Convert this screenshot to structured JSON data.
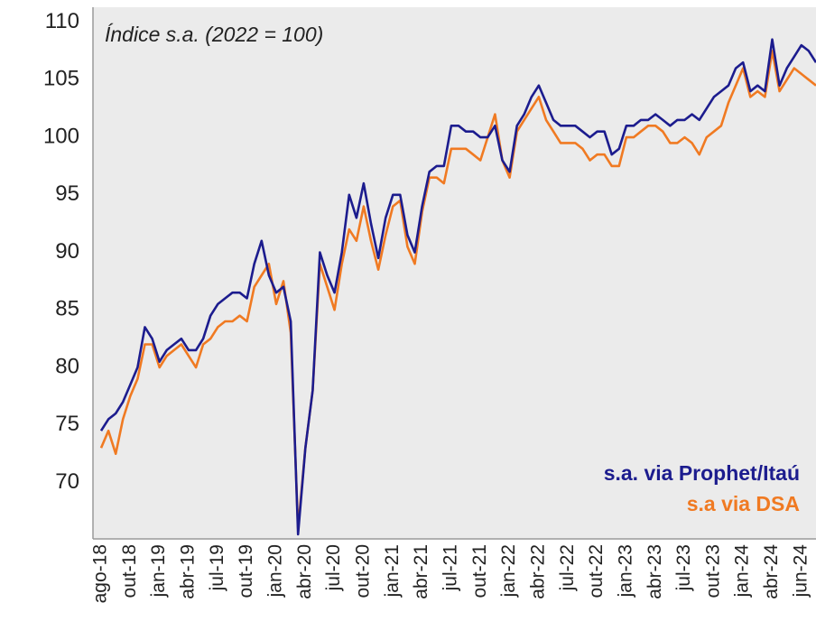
{
  "chart_data": {
    "type": "line",
    "annotation": "Índice s.a. (2022 = 100)",
    "categories": [
      "ago-18",
      null,
      null,
      null,
      "out-18",
      null,
      null,
      null,
      "jan-19",
      null,
      null,
      null,
      "abr-19",
      null,
      null,
      null,
      "jul-19",
      null,
      null,
      null,
      "out-19",
      null,
      null,
      null,
      "jan-20",
      null,
      null,
      null,
      "abr-20",
      null,
      null,
      null,
      "jul-20",
      null,
      null,
      null,
      "out-20",
      null,
      null,
      null,
      "jan-21",
      null,
      null,
      null,
      "abr-21",
      null,
      null,
      null,
      "jul-21",
      null,
      null,
      null,
      "out-21",
      null,
      null,
      null,
      "jan-22",
      null,
      null,
      null,
      "abr-22",
      null,
      null,
      null,
      "jul-22",
      null,
      null,
      null,
      "out-22",
      null,
      null,
      null,
      "jan-23",
      null,
      null,
      null,
      "abr-23",
      null,
      null,
      null,
      "jul-23",
      null,
      null,
      null,
      "out-23",
      null,
      null,
      null,
      "jan-24",
      null,
      null,
      null,
      "abr-24",
      null,
      null,
      null,
      "jun-24",
      null,
      null
    ],
    "series": [
      {
        "name": "s.a. via Prophet/Itaú",
        "color": "#1c1c8e",
        "values": [
          74.5,
          75.5,
          76,
          77,
          78.5,
          80,
          83.5,
          82.5,
          80.5,
          81.5,
          82,
          82.5,
          81.5,
          81.5,
          82.5,
          84.5,
          85.5,
          86,
          86.5,
          86.5,
          86,
          89,
          91,
          88,
          86.5,
          87,
          84,
          65.5,
          73,
          78,
          90,
          88,
          86.5,
          90,
          95,
          93,
          96,
          92.5,
          89.5,
          93,
          95,
          95,
          91.5,
          90,
          94,
          97,
          97.5,
          97.5,
          101,
          101,
          100.5,
          100.5,
          100,
          100,
          101,
          98,
          97,
          101,
          102,
          103.5,
          104.5,
          103,
          101.5,
          101,
          101,
          101,
          100.5,
          100,
          100.5,
          100.5,
          98.5,
          99,
          101,
          101,
          101.5,
          101.5,
          102,
          101.5,
          101,
          101.5,
          101.5,
          102,
          101.5,
          102.5,
          103.5,
          104,
          104.5,
          106,
          106.5,
          104,
          104.5,
          104,
          108.5,
          104.5,
          106,
          107,
          108,
          107.5,
          106.5
        ]
      },
      {
        "name": "s.a via DSA",
        "color": "#f07a22",
        "values": [
          73,
          74.5,
          72.5,
          75.5,
          77.5,
          79,
          82,
          82,
          80,
          81,
          81.5,
          82,
          81,
          80,
          82,
          82.5,
          83.5,
          84,
          84,
          84.5,
          84,
          87,
          88,
          89,
          85.5,
          87.5,
          83,
          66,
          73,
          78,
          89,
          87,
          85,
          89,
          92,
          91,
          94,
          91,
          88.5,
          91.5,
          94,
          94.5,
          90.5,
          89,
          93.5,
          96.5,
          96.5,
          96,
          99,
          99,
          99,
          98.5,
          98,
          100,
          102,
          98,
          96.5,
          100.5,
          101.5,
          102.5,
          103.5,
          101.5,
          100.5,
          99.5,
          99.5,
          99.5,
          99,
          98,
          98.5,
          98.5,
          97.5,
          97.5,
          100,
          100,
          100.5,
          101,
          101,
          100.5,
          99.5,
          99.5,
          100,
          99.5,
          98.5,
          100,
          100.5,
          101,
          103,
          104.5,
          106,
          103.5,
          104,
          103.5,
          107.5,
          104,
          105,
          106,
          105.5,
          105,
          104.5
        ]
      }
    ],
    "ylim": [
      65.1,
      111.3
    ],
    "yticks": [
      70,
      75,
      80,
      85,
      90,
      95,
      100,
      105,
      110
    ]
  }
}
